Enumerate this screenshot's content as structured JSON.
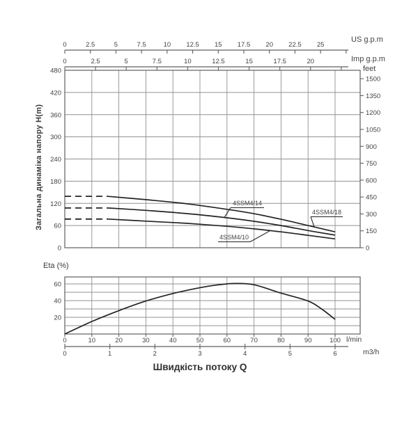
{
  "colors": {
    "ink": "#424242",
    "grid": "#909090",
    "frame": "#5f5f5f",
    "curve": "#232323"
  },
  "top_axes": {
    "us": {
      "unit": "US g.p.m",
      "ticks": [
        0,
        2.5,
        5,
        7.5,
        10,
        12.5,
        15,
        17.5,
        20,
        22.5,
        25
      ],
      "extra_ticks": [
        27.5
      ],
      "lpm_per_unit": 3.785
    },
    "imp": {
      "unit": "Imp g.p.m",
      "ticks": [
        0,
        2.5,
        5,
        7.5,
        10,
        12.5,
        15,
        17.5,
        20
      ],
      "extra_ticks": [
        22.5
      ],
      "lpm_per_unit": 4.546
    }
  },
  "bottom_axes": {
    "lmin": {
      "unit": "l/min",
      "ticks": [
        0,
        10,
        20,
        30,
        40,
        50,
        60,
        70,
        80,
        90,
        100
      ]
    },
    "m3h": {
      "unit": "m3/h",
      "ticks": [
        0,
        1,
        2,
        3,
        4,
        5,
        6
      ],
      "lpm_per_unit": 16.667
    }
  },
  "x_axis_title": "Швидкість потоку Q",
  "chart_data": [
    {
      "type": "line",
      "name": "head-vs-flow",
      "x_unit": "l/min",
      "x_gridlines": [
        0,
        10,
        20,
        30,
        40,
        50,
        60,
        70,
        80,
        90,
        100
      ],
      "x_range": [
        0,
        109.3
      ],
      "y_axis": {
        "title": "Загальна динаміка напору H(m)",
        "ticks": [
          0,
          60,
          120,
          180,
          240,
          300,
          360,
          420,
          480
        ],
        "max": 480
      },
      "right_axis": {
        "unit": "feet",
        "ticks": [
          0,
          150,
          300,
          450,
          600,
          750,
          900,
          1050,
          1200,
          1350,
          1500
        ],
        "meters_per_foot": 0.3048
      },
      "series": [
        {
          "name": "4SSM4/18",
          "dashed_segment": [
            [
              0,
              139
            ],
            [
              16,
              139
            ]
          ],
          "points": [
            [
              16,
              139
            ],
            [
              30,
              130
            ],
            [
              45,
              119
            ],
            [
              60,
              104
            ],
            [
              70,
              92
            ],
            [
              80,
              77
            ],
            [
              90,
              60
            ],
            [
              100,
              43
            ]
          ]
        },
        {
          "name": "4SSM4/14",
          "dashed_segment": [
            [
              0,
              107.5
            ],
            [
              16,
              107.5
            ]
          ],
          "points": [
            [
              16,
              107.5
            ],
            [
              30,
              101
            ],
            [
              45,
              92.5
            ],
            [
              60,
              81
            ],
            [
              70,
              71.5
            ],
            [
              80,
              60
            ],
            [
              90,
              46.5
            ],
            [
              100,
              34
            ]
          ]
        },
        {
          "name": "4SSM4/10",
          "dashed_segment": [
            [
              0,
              77.5
            ],
            [
              16,
              77.5
            ]
          ],
          "points": [
            [
              16,
              77.5
            ],
            [
              30,
              72
            ],
            [
              45,
              66
            ],
            [
              60,
              58
            ],
            [
              70,
              51
            ],
            [
              80,
              43
            ],
            [
              90,
              33.5
            ],
            [
              100,
              24
            ]
          ]
        }
      ]
    },
    {
      "type": "line",
      "name": "efficiency-vs-flow",
      "x_unit": "l/min",
      "x_gridlines": [
        0,
        10,
        20,
        30,
        40,
        50,
        60,
        70,
        80,
        90,
        100
      ],
      "x_range": [
        0,
        109.3
      ],
      "y_axis": {
        "title": "Eta (%)",
        "labeled_ticks": [
          0,
          20,
          40,
          60
        ],
        "gridline_step": 10,
        "ylim": [
          0,
          68
        ]
      },
      "series": [
        {
          "name": "Eta",
          "points": [
            [
              0,
              0
            ],
            [
              10,
              15
            ],
            [
              20,
              28
            ],
            [
              30,
              39.5
            ],
            [
              40,
              48.5
            ],
            [
              50,
              55.5
            ],
            [
              57,
              59
            ],
            [
              63,
              60.5
            ],
            [
              70,
              59
            ],
            [
              80,
              49
            ],
            [
              90,
              39.5
            ],
            [
              95,
              30
            ],
            [
              100,
              17.5
            ]
          ]
        }
      ]
    }
  ]
}
